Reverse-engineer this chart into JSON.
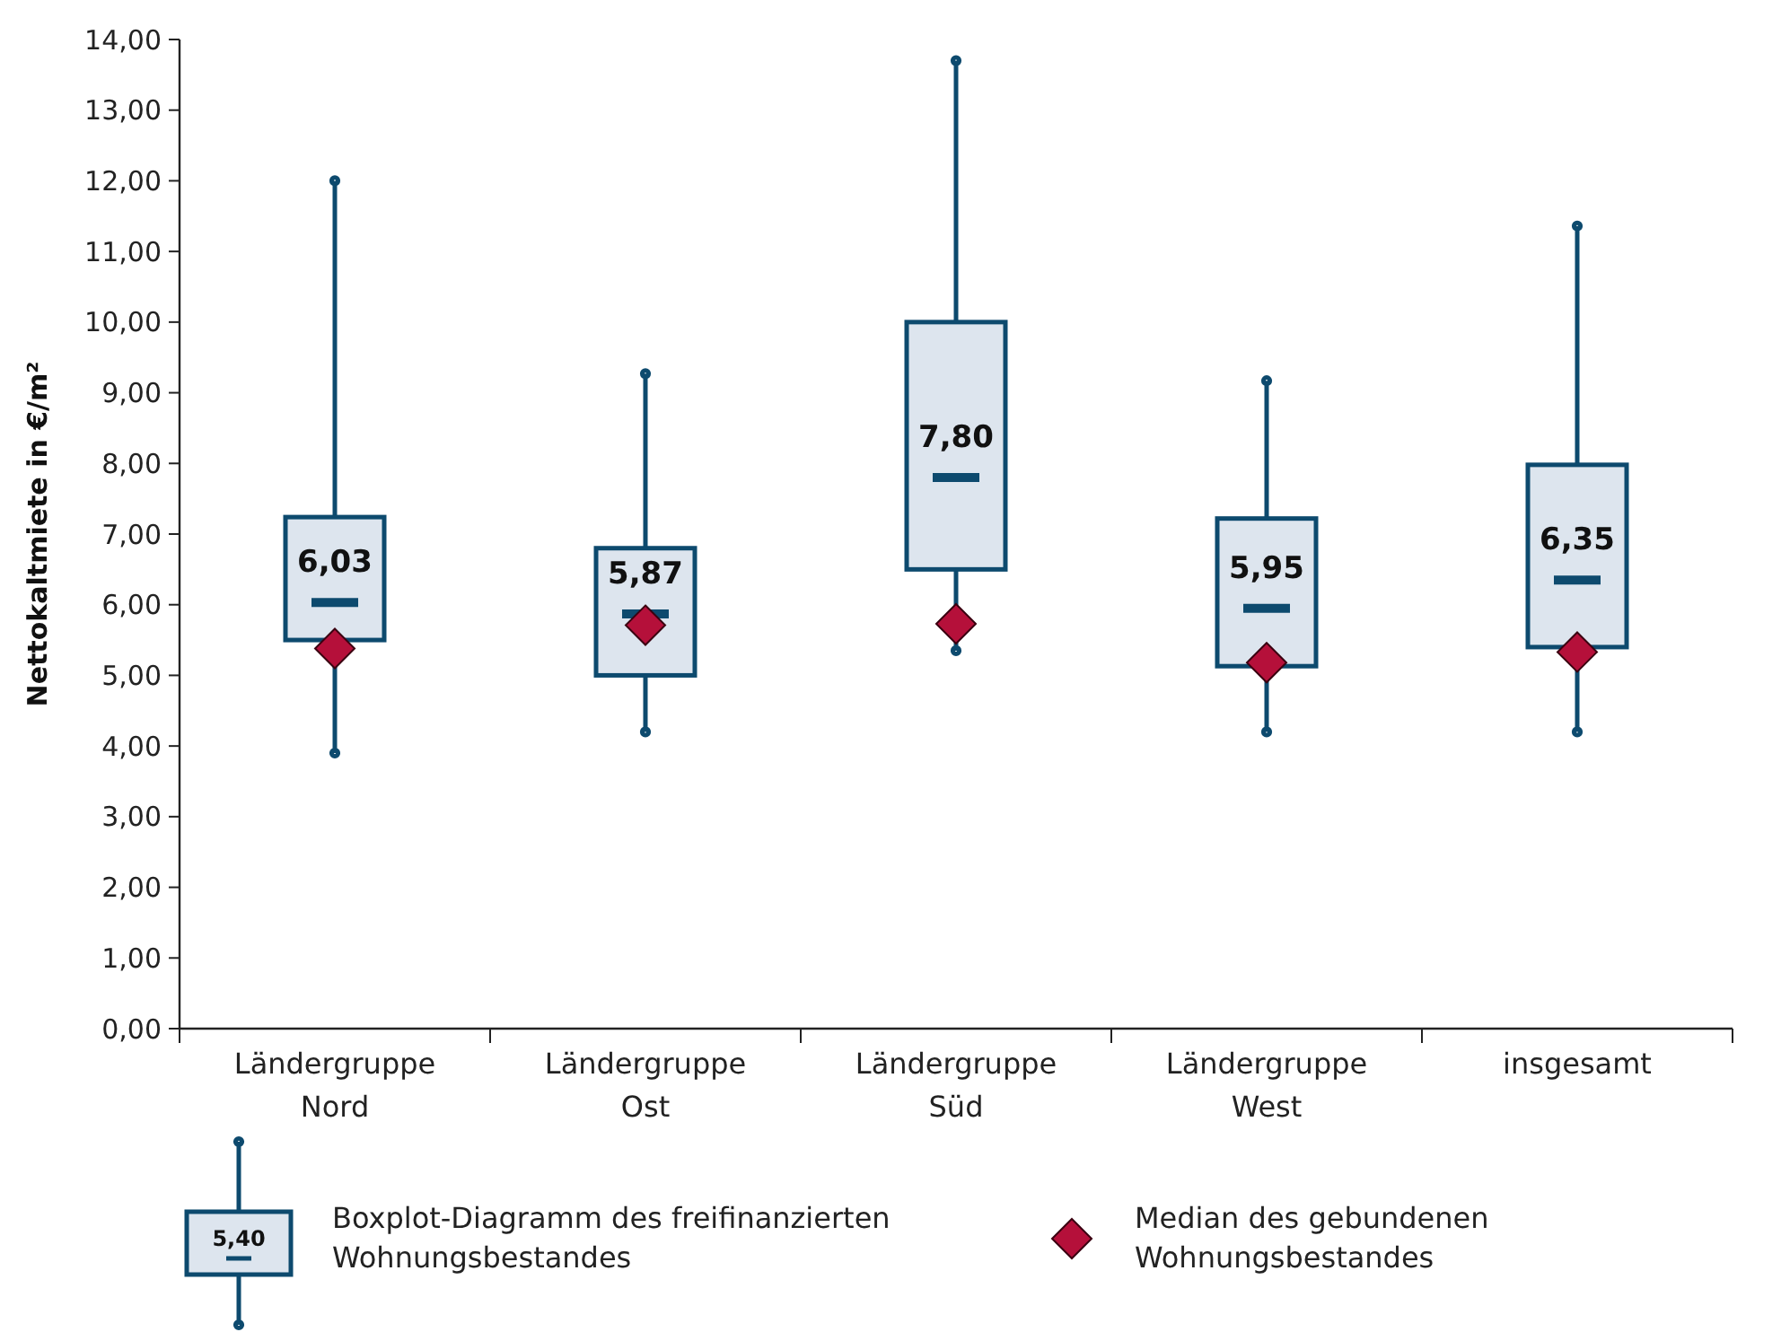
{
  "chart_data": {
    "type": "box",
    "ylabel": "Nettokaltmiete in €/m²",
    "categories": [
      "Ländergruppe Nord",
      "Ländergruppe Ost",
      "Ländergruppe Süd",
      "Ländergruppe West",
      "insgesamt"
    ],
    "ylim": [
      0,
      14
    ],
    "yticks": [
      {
        "value": 0,
        "label": "0,00"
      },
      {
        "value": 1,
        "label": "1,00"
      },
      {
        "value": 2,
        "label": "2,00"
      },
      {
        "value": 3,
        "label": "3,00"
      },
      {
        "value": 4,
        "label": "4,00"
      },
      {
        "value": 5,
        "label": "5,00"
      },
      {
        "value": 6,
        "label": "6,00"
      },
      {
        "value": 7,
        "label": "7,00"
      },
      {
        "value": 8,
        "label": "8,00"
      },
      {
        "value": 9,
        "label": "9,00"
      },
      {
        "value": 10,
        "label": "10,00"
      },
      {
        "value": 11,
        "label": "11,00"
      },
      {
        "value": 12,
        "label": "12,00"
      },
      {
        "value": 13,
        "label": "13,00"
      },
      {
        "value": 14,
        "label": "14,00"
      }
    ],
    "grid": false,
    "legend": "bottom",
    "series": [
      {
        "name": "Boxplot-Diagramm des freifinanzierten Wohnungsbestandes",
        "color": "#dde5ee",
        "boxes": [
          {
            "low": 3.9,
            "q1": 5.5,
            "median": 6.03,
            "q3": 7.24,
            "high": 12.0
          },
          {
            "low": 4.2,
            "q1": 5.0,
            "median": 5.87,
            "q3": 6.8,
            "high": 9.27
          },
          {
            "low": 5.35,
            "q1": 6.5,
            "median": 7.8,
            "q3": 10.0,
            "high": 13.7
          },
          {
            "low": 4.2,
            "q1": 5.13,
            "median": 5.95,
            "q3": 7.22,
            "high": 9.17
          },
          {
            "low": 4.2,
            "q1": 5.4,
            "median": 6.35,
            "q3": 7.98,
            "high": 11.36
          }
        ],
        "value_labels": [
          "6,03",
          "5,87",
          "7,80",
          "5,95",
          "6,35"
        ]
      },
      {
        "name": "Median des gebundenen Wohnungsbestandes",
        "type": "scatter",
        "color": "#b5103a",
        "marker": "diamond",
        "x": [
          "Ländergruppe Nord",
          "Ländergruppe Ost",
          "Ländergruppe Süd",
          "Ländergruppe West",
          "insgesamt"
        ],
        "values": [
          5.38,
          5.71,
          5.73,
          5.18,
          5.33
        ]
      }
    ],
    "annotations": [
      "5,40"
    ]
  }
}
